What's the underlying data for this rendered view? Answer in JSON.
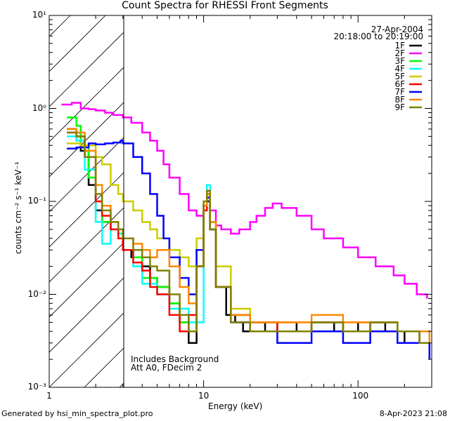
{
  "title": "Count Spectra for RHESSI Front Segments",
  "date": "27-Apr-2004",
  "time_range": "20:18:00 to 20:19:00",
  "xlabel": "Energy (keV)",
  "ylabel": "counts cm⁻² s⁻¹ keV⁻¹",
  "notes": [
    "Includes Background",
    "Att A0, FDecim 2"
  ],
  "footer_left": "Generated by hsi_min_spectra_plot.pro",
  "footer_right": "8-Apr-2023 21:08",
  "chart_data": {
    "type": "line",
    "xscale": "log",
    "yscale": "log",
    "xlim": [
      1,
      300
    ],
    "ylim": [
      0.001,
      10
    ],
    "x_ticks": [
      "1",
      "10",
      "100"
    ],
    "y_ticks": [
      "10⁻³",
      "10⁻²",
      "10⁻¹",
      "10⁰",
      "10¹"
    ],
    "hatched_region_x": [
      1,
      3
    ],
    "series": [
      {
        "name": "1F",
        "color": "#000000",
        "x": [
          1.3,
          1.5,
          1.6,
          1.8,
          2.0,
          2.2,
          2.5,
          2.8,
          3.0,
          3.4,
          4.0,
          4.5,
          5.0,
          6.0,
          7.0,
          8.0,
          9.0,
          10.0,
          10.5,
          11.0,
          12.0,
          14.0,
          16.0,
          18.0,
          20.0,
          25.0,
          30.0,
          40.0,
          50.0,
          70.0,
          100.0,
          150.0,
          200.0,
          250.0,
          290.0
        ],
        "values": [
          0.6,
          0.55,
          0.35,
          0.15,
          0.08,
          0.06,
          0.05,
          0.045,
          0.03,
          0.025,
          0.02,
          0.015,
          0.012,
          0.008,
          0.005,
          0.003,
          0.02,
          0.08,
          0.1,
          0.05,
          0.012,
          0.006,
          0.005,
          0.004,
          0.005,
          0.004,
          0.005,
          0.004,
          0.005,
          0.004,
          0.005,
          0.004,
          0.003,
          0.003,
          0.002
        ]
      },
      {
        "name": "2F",
        "color": "#ff00ff",
        "x": [
          1.2,
          1.4,
          1.6,
          1.8,
          2.0,
          2.3,
          2.6,
          3.0,
          3.4,
          4.0,
          4.5,
          5.0,
          5.5,
          6.0,
          7.0,
          8.0,
          9.0,
          10.0,
          10.5,
          11.0,
          12.0,
          13.0,
          15.0,
          17.0,
          20.0,
          22.0,
          25.0,
          28.0,
          32.0,
          40.0,
          50.0,
          60.0,
          80.0,
          100.0,
          130.0,
          170.0,
          200.0,
          240.0,
          280.0
        ],
        "values": [
          1.1,
          1.15,
          1.0,
          0.98,
          0.95,
          0.9,
          0.85,
          0.8,
          0.7,
          0.55,
          0.45,
          0.35,
          0.25,
          0.18,
          0.12,
          0.08,
          0.07,
          0.09,
          0.13,
          0.08,
          0.055,
          0.05,
          0.045,
          0.05,
          0.06,
          0.07,
          0.085,
          0.095,
          0.085,
          0.07,
          0.05,
          0.04,
          0.032,
          0.025,
          0.02,
          0.016,
          0.013,
          0.01,
          0.009
        ]
      },
      {
        "name": "3F",
        "color": "#00ff00",
        "x": [
          1.3,
          1.5,
          1.6,
          1.8,
          2.0,
          2.2,
          2.5,
          2.8,
          3.0,
          3.5,
          4.0,
          5.0,
          6.0,
          7.0,
          8.0,
          9.0,
          10.0,
          10.5,
          11.0,
          12.0,
          15.0,
          20.0,
          30.0,
          50.0,
          80.0,
          120.0,
          180.0,
          250.0,
          290.0
        ],
        "values": [
          0.8,
          0.65,
          0.4,
          0.18,
          0.1,
          0.06,
          0.05,
          0.045,
          0.03,
          0.025,
          0.015,
          0.012,
          0.008,
          0.005,
          0.004,
          0.02,
          0.08,
          0.12,
          0.05,
          0.012,
          0.006,
          0.005,
          0.004,
          0.005,
          0.004,
          0.005,
          0.004,
          0.004,
          0.003
        ]
      },
      {
        "name": "4F",
        "color": "#00ffff",
        "x": [
          1.3,
          1.5,
          1.7,
          2.0,
          2.2,
          2.5,
          2.8,
          3.0,
          3.5,
          4.0,
          5.0,
          6.0,
          8.0,
          10.0,
          10.5,
          11.0,
          12.0,
          15.0,
          20.0,
          30.0,
          50.0,
          80.0,
          120.0,
          180.0,
          250.0,
          290.0
        ],
        "values": [
          0.5,
          0.45,
          0.22,
          0.06,
          0.035,
          0.05,
          0.045,
          0.03,
          0.02,
          0.013,
          0.01,
          0.007,
          0.005,
          0.09,
          0.15,
          0.06,
          0.012,
          0.006,
          0.005,
          0.004,
          0.005,
          0.004,
          0.005,
          0.004,
          0.004,
          0.003
        ]
      },
      {
        "name": "5F",
        "color": "#cccc00",
        "x": [
          1.3,
          1.6,
          2.0,
          2.2,
          2.5,
          2.8,
          3.0,
          3.5,
          4.0,
          4.5,
          5.0,
          6.0,
          7.0,
          8.0,
          9.0,
          10.0,
          10.5,
          11.0,
          12.0,
          15.0,
          20.0,
          30.0,
          50.0,
          80.0,
          120.0,
          180.0,
          250.0,
          290.0
        ],
        "values": [
          0.42,
          0.4,
          0.3,
          0.25,
          0.15,
          0.12,
          0.1,
          0.08,
          0.06,
          0.05,
          0.04,
          0.03,
          0.025,
          0.02,
          0.04,
          0.09,
          0.11,
          0.06,
          0.02,
          0.007,
          0.005,
          0.005,
          0.005,
          0.005,
          0.005,
          0.004,
          0.004,
          0.003
        ]
      },
      {
        "name": "6F",
        "color": "#ff0000",
        "x": [
          1.3,
          1.5,
          1.7,
          2.0,
          2.2,
          2.5,
          2.8,
          3.0,
          3.5,
          4.0,
          4.5,
          5.0,
          6.0,
          7.0,
          8.0,
          9.0,
          10.0,
          10.5,
          11.0,
          12.0,
          15.0,
          20.0,
          30.0,
          50.0,
          80.0,
          120.0,
          180.0,
          250.0,
          290.0
        ],
        "values": [
          0.55,
          0.5,
          0.3,
          0.1,
          0.07,
          0.05,
          0.04,
          0.03,
          0.022,
          0.018,
          0.012,
          0.01,
          0.006,
          0.004,
          0.006,
          0.02,
          0.08,
          0.11,
          0.05,
          0.012,
          0.006,
          0.005,
          0.004,
          0.005,
          0.004,
          0.005,
          0.004,
          0.003,
          0.002
        ]
      },
      {
        "name": "7F",
        "color": "#0000ff",
        "x": [
          1.3,
          1.5,
          1.8,
          2.0,
          2.3,
          2.6,
          2.9,
          3.0,
          3.5,
          4.0,
          4.5,
          5.0,
          5.5,
          6.0,
          7.0,
          8.0,
          9.0,
          10.0,
          10.5,
          11.0,
          12.0,
          15.0,
          20.0,
          30.0,
          50.0,
          80.0,
          120.0,
          180.0,
          250.0,
          290.0
        ],
        "values": [
          0.37,
          0.38,
          0.42,
          0.41,
          0.42,
          0.43,
          0.45,
          0.42,
          0.3,
          0.2,
          0.12,
          0.07,
          0.04,
          0.025,
          0.015,
          0.01,
          0.03,
          0.09,
          0.11,
          0.05,
          0.012,
          0.005,
          0.004,
          0.003,
          0.004,
          0.003,
          0.004,
          0.003,
          0.003,
          0.002
        ]
      },
      {
        "name": "8F",
        "color": "#ff8800",
        "x": [
          1.3,
          1.5,
          1.7,
          2.0,
          2.2,
          2.5,
          2.8,
          3.0,
          3.5,
          4.0,
          4.5,
          5.0,
          6.0,
          7.0,
          8.0,
          9.0,
          10.0,
          10.5,
          11.0,
          12.0,
          15.0,
          20.0,
          30.0,
          50.0,
          80.0,
          120.0,
          180.0,
          250.0,
          290.0
        ],
        "values": [
          0.6,
          0.55,
          0.35,
          0.15,
          0.09,
          0.06,
          0.05,
          0.04,
          0.035,
          0.03,
          0.025,
          0.03,
          0.02,
          0.012,
          0.008,
          0.02,
          0.09,
          0.12,
          0.06,
          0.012,
          0.006,
          0.005,
          0.005,
          0.006,
          0.005,
          0.005,
          0.004,
          0.004,
          0.003
        ]
      },
      {
        "name": "9F",
        "color": "#808000",
        "x": [
          1.3,
          1.5,
          1.7,
          2.0,
          2.2,
          2.5,
          2.8,
          3.0,
          3.5,
          4.0,
          4.5,
          5.0,
          6.0,
          7.0,
          8.0,
          9.0,
          10.0,
          10.5,
          11.0,
          12.0,
          15.0,
          20.0,
          30.0,
          50.0,
          80.0,
          120.0,
          180.0,
          250.0,
          290.0
        ],
        "values": [
          0.55,
          0.5,
          0.3,
          0.12,
          0.08,
          0.06,
          0.05,
          0.04,
          0.03,
          0.025,
          0.02,
          0.018,
          0.01,
          0.006,
          0.004,
          0.02,
          0.1,
          0.13,
          0.05,
          0.012,
          0.005,
          0.004,
          0.004,
          0.005,
          0.004,
          0.005,
          0.004,
          0.003,
          0.003
        ]
      }
    ]
  }
}
